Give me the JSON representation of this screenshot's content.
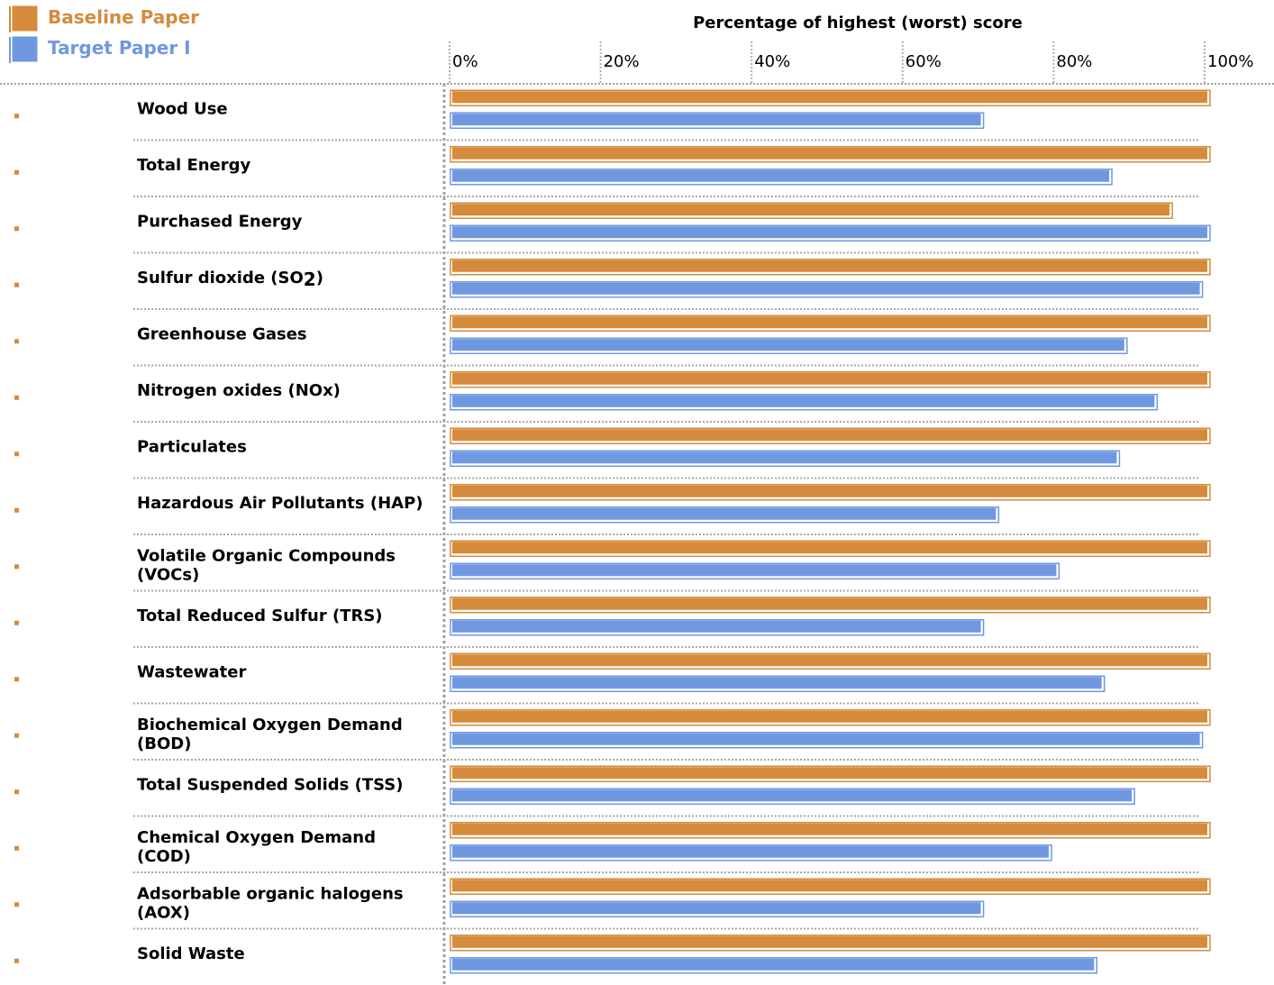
{
  "chart_data": {
    "type": "bar",
    "orientation": "horizontal",
    "title": "Percentage of highest (worst) score",
    "xlim": [
      0,
      100
    ],
    "ticks": [
      "0%",
      "20%",
      "40%",
      "60%",
      "80%",
      "100%"
    ],
    "tick_values": [
      0,
      20,
      40,
      60,
      80,
      100
    ],
    "grid": true,
    "legend_position": "top-left",
    "categories": [
      {
        "line1": "Wood Use",
        "line2": ""
      },
      {
        "line1": "Total Energy",
        "line2": ""
      },
      {
        "line1": "Purchased Energy",
        "line2": ""
      },
      {
        "line1": "Sulfur dioxide (SO",
        "sub": "2",
        "tail": ")",
        "line2": ""
      },
      {
        "line1": "Greenhouse Gases",
        "line2": ""
      },
      {
        "line1": "Nitrogen oxides (NOx)",
        "line2": ""
      },
      {
        "line1": "Particulates",
        "line2": ""
      },
      {
        "line1": "Hazardous Air Pollutants (HAP)",
        "line2": ""
      },
      {
        "line1": "Volatile Organic Compounds",
        "line2": "(VOCs)"
      },
      {
        "line1": "Total Reduced Sulfur (TRS)",
        "line2": ""
      },
      {
        "line1": "Wastewater",
        "line2": ""
      },
      {
        "line1": "Biochemical Oxygen Demand",
        "line2": "(BOD)"
      },
      {
        "line1": "Total Suspended Solids (TSS)",
        "line2": ""
      },
      {
        "line1": "Chemical Oxygen Demand",
        "line2": "(COD)"
      },
      {
        "line1": "Adsorbable organic halogens",
        "line2": "(AOX)"
      },
      {
        "line1": "Solid Waste",
        "line2": ""
      }
    ],
    "series": [
      {
        "name": "Baseline Paper",
        "color": "#d58b3b",
        "values": [
          100,
          100,
          95,
          100,
          100,
          100,
          100,
          100,
          100,
          100,
          100,
          100,
          100,
          100,
          100,
          100
        ]
      },
      {
        "name": "Target Paper I",
        "color": "#6f98e0",
        "values": [
          70,
          87,
          100,
          99,
          89,
          93,
          88,
          72,
          80,
          70,
          86,
          99,
          90,
          79,
          70,
          85
        ]
      }
    ]
  }
}
